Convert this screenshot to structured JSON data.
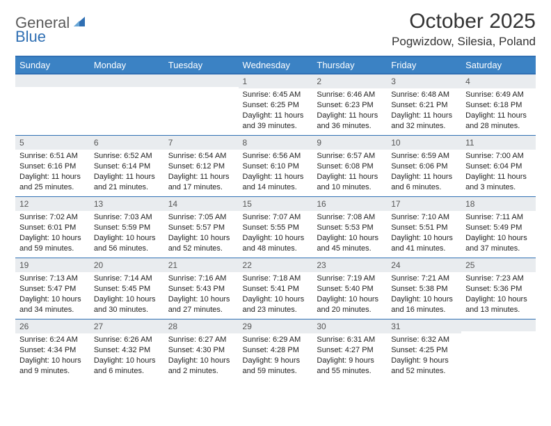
{
  "logo": {
    "part1": "General",
    "part2": "Blue"
  },
  "title": "October 2025",
  "location": "Pogwizdow, Silesia, Poland",
  "colors": {
    "header_bg": "#3b82c4",
    "border": "#2f6fb3",
    "daynum_bg": "#e9ecef",
    "text": "#222222"
  },
  "day_headers": [
    "Sunday",
    "Monday",
    "Tuesday",
    "Wednesday",
    "Thursday",
    "Friday",
    "Saturday"
  ],
  "weeks": [
    [
      {
        "n": "",
        "sunrise": "",
        "sunset": "",
        "daylight": ""
      },
      {
        "n": "",
        "sunrise": "",
        "sunset": "",
        "daylight": ""
      },
      {
        "n": "",
        "sunrise": "",
        "sunset": "",
        "daylight": ""
      },
      {
        "n": "1",
        "sunrise": "Sunrise: 6:45 AM",
        "sunset": "Sunset: 6:25 PM",
        "daylight": "Daylight: 11 hours and 39 minutes."
      },
      {
        "n": "2",
        "sunrise": "Sunrise: 6:46 AM",
        "sunset": "Sunset: 6:23 PM",
        "daylight": "Daylight: 11 hours and 36 minutes."
      },
      {
        "n": "3",
        "sunrise": "Sunrise: 6:48 AM",
        "sunset": "Sunset: 6:21 PM",
        "daylight": "Daylight: 11 hours and 32 minutes."
      },
      {
        "n": "4",
        "sunrise": "Sunrise: 6:49 AM",
        "sunset": "Sunset: 6:18 PM",
        "daylight": "Daylight: 11 hours and 28 minutes."
      }
    ],
    [
      {
        "n": "5",
        "sunrise": "Sunrise: 6:51 AM",
        "sunset": "Sunset: 6:16 PM",
        "daylight": "Daylight: 11 hours and 25 minutes."
      },
      {
        "n": "6",
        "sunrise": "Sunrise: 6:52 AM",
        "sunset": "Sunset: 6:14 PM",
        "daylight": "Daylight: 11 hours and 21 minutes."
      },
      {
        "n": "7",
        "sunrise": "Sunrise: 6:54 AM",
        "sunset": "Sunset: 6:12 PM",
        "daylight": "Daylight: 11 hours and 17 minutes."
      },
      {
        "n": "8",
        "sunrise": "Sunrise: 6:56 AM",
        "sunset": "Sunset: 6:10 PM",
        "daylight": "Daylight: 11 hours and 14 minutes."
      },
      {
        "n": "9",
        "sunrise": "Sunrise: 6:57 AM",
        "sunset": "Sunset: 6:08 PM",
        "daylight": "Daylight: 11 hours and 10 minutes."
      },
      {
        "n": "10",
        "sunrise": "Sunrise: 6:59 AM",
        "sunset": "Sunset: 6:06 PM",
        "daylight": "Daylight: 11 hours and 6 minutes."
      },
      {
        "n": "11",
        "sunrise": "Sunrise: 7:00 AM",
        "sunset": "Sunset: 6:04 PM",
        "daylight": "Daylight: 11 hours and 3 minutes."
      }
    ],
    [
      {
        "n": "12",
        "sunrise": "Sunrise: 7:02 AM",
        "sunset": "Sunset: 6:01 PM",
        "daylight": "Daylight: 10 hours and 59 minutes."
      },
      {
        "n": "13",
        "sunrise": "Sunrise: 7:03 AM",
        "sunset": "Sunset: 5:59 PM",
        "daylight": "Daylight: 10 hours and 56 minutes."
      },
      {
        "n": "14",
        "sunrise": "Sunrise: 7:05 AM",
        "sunset": "Sunset: 5:57 PM",
        "daylight": "Daylight: 10 hours and 52 minutes."
      },
      {
        "n": "15",
        "sunrise": "Sunrise: 7:07 AM",
        "sunset": "Sunset: 5:55 PM",
        "daylight": "Daylight: 10 hours and 48 minutes."
      },
      {
        "n": "16",
        "sunrise": "Sunrise: 7:08 AM",
        "sunset": "Sunset: 5:53 PM",
        "daylight": "Daylight: 10 hours and 45 minutes."
      },
      {
        "n": "17",
        "sunrise": "Sunrise: 7:10 AM",
        "sunset": "Sunset: 5:51 PM",
        "daylight": "Daylight: 10 hours and 41 minutes."
      },
      {
        "n": "18",
        "sunrise": "Sunrise: 7:11 AM",
        "sunset": "Sunset: 5:49 PM",
        "daylight": "Daylight: 10 hours and 37 minutes."
      }
    ],
    [
      {
        "n": "19",
        "sunrise": "Sunrise: 7:13 AM",
        "sunset": "Sunset: 5:47 PM",
        "daylight": "Daylight: 10 hours and 34 minutes."
      },
      {
        "n": "20",
        "sunrise": "Sunrise: 7:14 AM",
        "sunset": "Sunset: 5:45 PM",
        "daylight": "Daylight: 10 hours and 30 minutes."
      },
      {
        "n": "21",
        "sunrise": "Sunrise: 7:16 AM",
        "sunset": "Sunset: 5:43 PM",
        "daylight": "Daylight: 10 hours and 27 minutes."
      },
      {
        "n": "22",
        "sunrise": "Sunrise: 7:18 AM",
        "sunset": "Sunset: 5:41 PM",
        "daylight": "Daylight: 10 hours and 23 minutes."
      },
      {
        "n": "23",
        "sunrise": "Sunrise: 7:19 AM",
        "sunset": "Sunset: 5:40 PM",
        "daylight": "Daylight: 10 hours and 20 minutes."
      },
      {
        "n": "24",
        "sunrise": "Sunrise: 7:21 AM",
        "sunset": "Sunset: 5:38 PM",
        "daylight": "Daylight: 10 hours and 16 minutes."
      },
      {
        "n": "25",
        "sunrise": "Sunrise: 7:23 AM",
        "sunset": "Sunset: 5:36 PM",
        "daylight": "Daylight: 10 hours and 13 minutes."
      }
    ],
    [
      {
        "n": "26",
        "sunrise": "Sunrise: 6:24 AM",
        "sunset": "Sunset: 4:34 PM",
        "daylight": "Daylight: 10 hours and 9 minutes."
      },
      {
        "n": "27",
        "sunrise": "Sunrise: 6:26 AM",
        "sunset": "Sunset: 4:32 PM",
        "daylight": "Daylight: 10 hours and 6 minutes."
      },
      {
        "n": "28",
        "sunrise": "Sunrise: 6:27 AM",
        "sunset": "Sunset: 4:30 PM",
        "daylight": "Daylight: 10 hours and 2 minutes."
      },
      {
        "n": "29",
        "sunrise": "Sunrise: 6:29 AM",
        "sunset": "Sunset: 4:28 PM",
        "daylight": "Daylight: 9 hours and 59 minutes."
      },
      {
        "n": "30",
        "sunrise": "Sunrise: 6:31 AM",
        "sunset": "Sunset: 4:27 PM",
        "daylight": "Daylight: 9 hours and 55 minutes."
      },
      {
        "n": "31",
        "sunrise": "Sunrise: 6:32 AM",
        "sunset": "Sunset: 4:25 PM",
        "daylight": "Daylight: 9 hours and 52 minutes."
      },
      {
        "n": "",
        "sunrise": "",
        "sunset": "",
        "daylight": ""
      }
    ]
  ]
}
